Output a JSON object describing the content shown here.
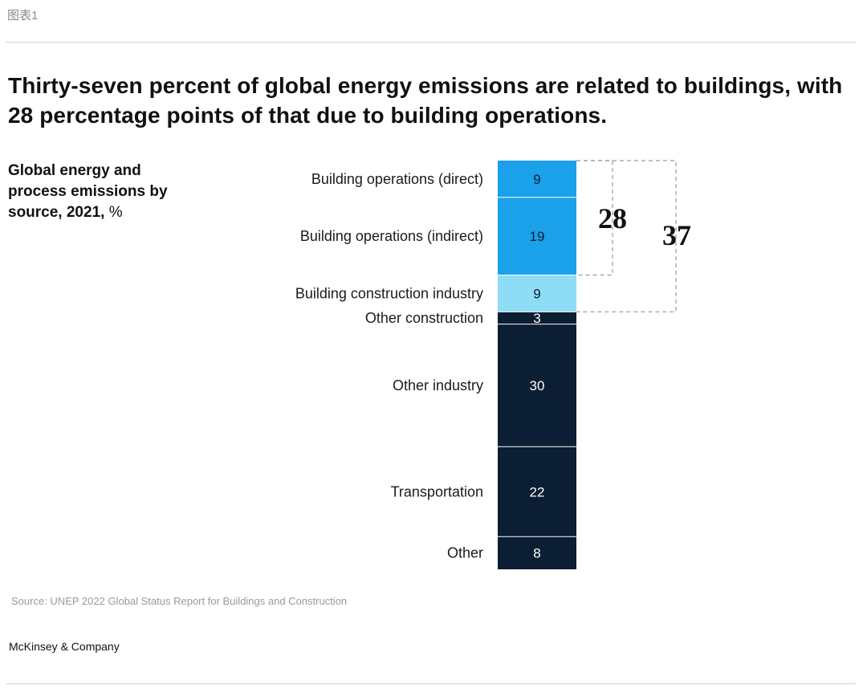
{
  "figure_label": "图表1",
  "headline": "Thirty-seven percent of global energy emissions are related to buildings, with 28 percentage points of that due to building operations.",
  "subtitle": {
    "bold": "Global energy and process emissions by source, 2021,",
    "unit": "%"
  },
  "source": "Source: UNEP 2022 Global Status Report for Buildings and Construction",
  "brand": "McKinsey & Company",
  "colors": {
    "bright_blue": "#1ba0ea",
    "light_blue": "#8fdcf6",
    "navy": "#0c1e33",
    "bracket": "#9a9a9a"
  },
  "chart_data": {
    "type": "bar",
    "stacked": true,
    "orientation": "vertical",
    "unit": "%",
    "total": 100,
    "segments": [
      {
        "label": "Building operations (direct)",
        "value": 9,
        "color": "#1ba0ea",
        "text_color": "#0c1e33"
      },
      {
        "label": "Building operations (indirect)",
        "value": 19,
        "color": "#1ba0ea",
        "text_color": "#0c1e33"
      },
      {
        "label": "Building construction industry",
        "value": 9,
        "color": "#8fdcf6",
        "text_color": "#0c1e33"
      },
      {
        "label": "Other construction",
        "value": 3,
        "color": "#0c1e33",
        "text_color": "#ffffff"
      },
      {
        "label": "Other industry",
        "value": 30,
        "color": "#0c1e33",
        "text_color": "#ffffff"
      },
      {
        "label": "Transportation",
        "value": 22,
        "color": "#0c1e33",
        "text_color": "#ffffff"
      },
      {
        "label": "Other",
        "value": 8,
        "color": "#0c1e33",
        "text_color": "#ffffff"
      }
    ],
    "brackets": [
      {
        "label": "28",
        "from_segment": 0,
        "to_segment": 1
      },
      {
        "label": "37",
        "from_segment": 0,
        "to_segment": 2
      }
    ]
  }
}
